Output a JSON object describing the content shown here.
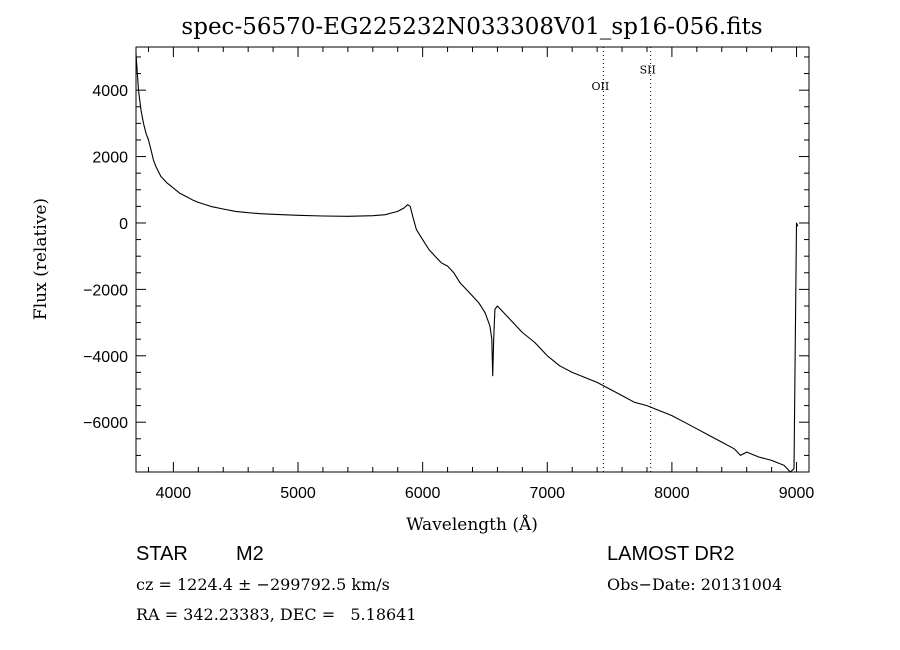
{
  "chart_data": {
    "type": "line",
    "title": "spec-56570-EG225232N033308V01_sp16-056.fits",
    "xlabel": "Wavelength (Å)",
    "ylabel": "Flux (relative)",
    "xlim": [
      3700,
      9100
    ],
    "ylim": [
      -7500,
      5300
    ],
    "x_ticks": [
      4000,
      5000,
      6000,
      7000,
      8000,
      9000
    ],
    "x_tick_labels": [
      "4000",
      "5000",
      "6000",
      "7000",
      "8000",
      "9000"
    ],
    "y_ticks": [
      4000,
      2000,
      0,
      -2000,
      -4000,
      -6000
    ],
    "y_tick_labels": [
      "4000",
      "2000",
      "0",
      "−2000",
      "−4000",
      "−6000"
    ],
    "grid": false,
    "series": [
      {
        "x": [
          3700,
          3720,
          3740,
          3760,
          3780,
          3800,
          3820,
          3840,
          3860,
          3880,
          3900,
          3950,
          4000,
          4050,
          4100,
          4150,
          4200,
          4300,
          4400,
          4500,
          4600,
          4700,
          4800,
          5000,
          5200,
          5400,
          5600,
          5700,
          5750,
          5800,
          5850,
          5880,
          5900,
          5920,
          5950,
          6000,
          6050,
          6100,
          6150,
          6200,
          6250,
          6300,
          6350,
          6400,
          6450,
          6500,
          6520,
          6540,
          6555,
          6562,
          6570,
          6580,
          6600,
          6650,
          6700,
          6800,
          6900,
          7000,
          7100,
          7200,
          7300,
          7400,
          7500,
          7600,
          7700,
          7800,
          7900,
          8000,
          8100,
          8200,
          8300,
          8400,
          8500,
          8550,
          8600,
          8700,
          8800,
          8900,
          8950,
          8980,
          9000,
          9010
        ],
        "y": [
          5100,
          4000,
          3400,
          3000,
          2700,
          2500,
          2200,
          1900,
          1700,
          1550,
          1400,
          1200,
          1050,
          900,
          800,
          700,
          620,
          500,
          420,
          350,
          310,
          280,
          260,
          230,
          210,
          200,
          220,
          250,
          300,
          350,
          450,
          550,
          500,
          200,
          -200,
          -500,
          -800,
          -1000,
          -1200,
          -1300,
          -1500,
          -1800,
          -2000,
          -2200,
          -2400,
          -2700,
          -2900,
          -3100,
          -3500,
          -4600,
          -3500,
          -2600,
          -2500,
          -2700,
          -2900,
          -3300,
          -3600,
          -4000,
          -4300,
          -4500,
          -4650,
          -4800,
          -5000,
          -5200,
          -5400,
          -5500,
          -5650,
          -5800,
          -6000,
          -6200,
          -6400,
          -6600,
          -6800,
          -7000,
          -6900,
          -7050,
          -7150,
          -7300,
          -7500,
          -7400,
          0,
          -100
        ]
      }
    ],
    "line_annotations": [
      {
        "label": "OII",
        "x": 7450,
        "label_y": 4000
      },
      {
        "label": "SII",
        "x": 7830,
        "label_y": 4500
      }
    ],
    "footer": {
      "class_label": "STAR",
      "subclass_label": "M2",
      "survey_label": "LAMOST DR2",
      "cz_text": "cz = 1224.4 ± −299792.5 km/s",
      "obs_date_text": "Obs−Date: 20131004",
      "radec_text": "RA = 342.23383, DEC =   5.18641"
    }
  }
}
